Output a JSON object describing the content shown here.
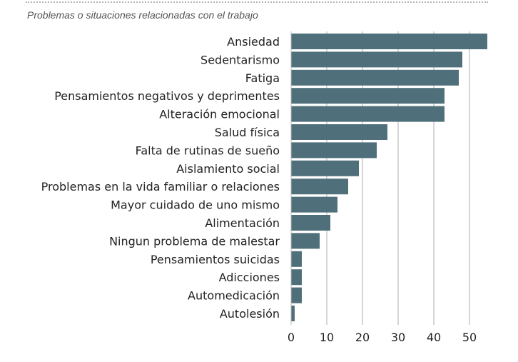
{
  "chart_data": {
    "type": "bar",
    "orientation": "horizontal",
    "subtitle": "Problemas o situaciones relacionadas con el trabajo",
    "categories": [
      "Ansiedad",
      "Sedentarismo",
      "Fatiga",
      "Pensamientos negativos y deprimentes",
      "Alteración emocional",
      "Salud física",
      "Falta de rutinas de sueño",
      "Aislamiento social",
      "Problemas en la vida familiar o relaciones",
      "Mayor cuidado de uno mismo",
      "Alimentación",
      "Ningun problema de malestar",
      "Pensamientos suicidas",
      "Adicciones",
      "Automedicación",
      "Autolesión"
    ],
    "values": [
      55,
      48,
      47,
      43,
      43,
      27,
      24,
      19,
      16,
      13,
      11,
      8,
      3,
      3,
      3,
      1
    ],
    "xlim": [
      0,
      55
    ],
    "xticks": [
      0,
      10,
      20,
      30,
      40,
      50
    ],
    "grid": "vertical",
    "bar_color": "#4f6f7a",
    "grid_color": "#c8c8c8"
  }
}
